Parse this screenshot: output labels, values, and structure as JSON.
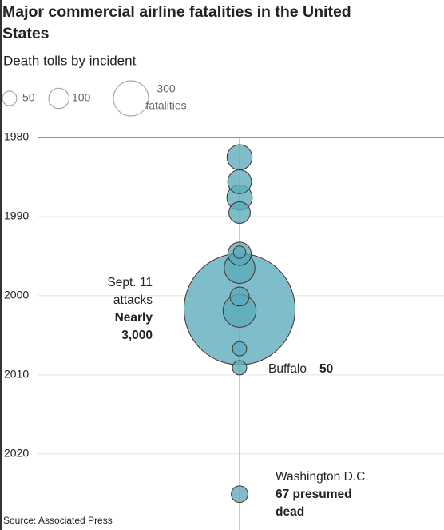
{
  "chart_data": {
    "type": "bubble",
    "title": "Major commercial airline fatalities in the United States",
    "subtitle": "Death tolls by incident",
    "y": [
      1982.5,
      1985.6,
      1987.6,
      1989.5,
      1994.5,
      1994.7,
      1996.5,
      2000.1,
      2001.7,
      2001.9,
      2006.7,
      2009.1,
      2025.1
    ],
    "sizes": [
      153,
      137,
      156,
      112,
      37,
      132,
      230,
      88,
      3000,
      265,
      49,
      50,
      67
    ],
    "color": "#5aabba",
    "stroke": "#4a2f2a",
    "ylim": [
      1980,
      2027.3
    ],
    "yticks": [
      1980,
      1990,
      2000,
      2010,
      2020
    ],
    "grid": true,
    "size_legend": {
      "values": [
        50,
        100,
        300
      ],
      "unit": "fatalities"
    },
    "annotations": [
      {
        "lines": [
          "Sept. 11",
          "attacks"
        ],
        "bold_lines": [
          "Nearly",
          "3,000"
        ]
      },
      {
        "lines": [
          "Buffalo"
        ],
        "bold_lines": [
          "50"
        ]
      },
      {
        "lines": [
          "Washington D.C."
        ],
        "bold_lines": [
          "67 presumed",
          "dead"
        ]
      }
    ],
    "source": "Source: Associated Press"
  }
}
